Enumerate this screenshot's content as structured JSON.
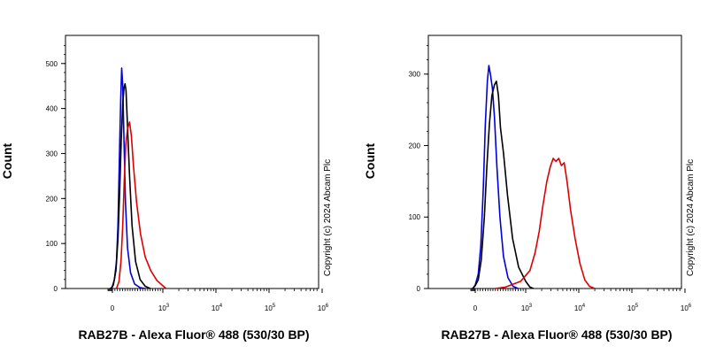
{
  "chart_data": [
    {
      "type": "line",
      "title": "",
      "xlabel": "RAB27B - Alexa Fluor® 488 (530/30 BP)",
      "ylabel": "Count",
      "copyright": "Copyright (c) 2024 Abcam Plc",
      "x_scale": "biexponential",
      "xlim": [
        -300,
        1000000
      ],
      "ylim": [
        0,
        540
      ],
      "x_ticks": [
        {
          "value": 0,
          "base": "0",
          "exp": ""
        },
        {
          "value": 1000,
          "base": "10",
          "exp": "3"
        },
        {
          "value": 10000,
          "base": "10",
          "exp": "4"
        },
        {
          "value": 100000,
          "base": "10",
          "exp": "5"
        },
        {
          "value": 1000000,
          "base": "10",
          "exp": "6"
        }
      ],
      "y_ticks": [
        0,
        100,
        200,
        300,
        400,
        500
      ],
      "series": [
        {
          "color": "#0000dd",
          "points": [
            [
              -120,
              0
            ],
            [
              -50,
              2
            ],
            [
              0,
              5
            ],
            [
              40,
              20
            ],
            [
              80,
              60
            ],
            [
              110,
              140
            ],
            [
              140,
              300
            ],
            [
              165,
              420
            ],
            [
              185,
              490
            ],
            [
              205,
              450
            ],
            [
              230,
              330
            ],
            [
              260,
              190
            ],
            [
              300,
              90
            ],
            [
              360,
              35
            ],
            [
              440,
              10
            ],
            [
              550,
              2
            ],
            [
              650,
              0
            ]
          ]
        },
        {
          "color": "#000000",
          "points": [
            [
              -100,
              0
            ],
            [
              -30,
              2
            ],
            [
              20,
              8
            ],
            [
              70,
              40
            ],
            [
              110,
              110
            ],
            [
              145,
              220
            ],
            [
              175,
              330
            ],
            [
              205,
              410
            ],
            [
              230,
              445
            ],
            [
              250,
              455
            ],
            [
              270,
              440
            ],
            [
              300,
              360
            ],
            [
              340,
              250
            ],
            [
              390,
              140
            ],
            [
              460,
              60
            ],
            [
              550,
              20
            ],
            [
              650,
              5
            ],
            [
              750,
              0
            ]
          ]
        },
        {
          "color": "#dd0000",
          "points": [
            [
              80,
              0
            ],
            [
              130,
              15
            ],
            [
              170,
              60
            ],
            [
              205,
              140
            ],
            [
              235,
              240
            ],
            [
              265,
              320
            ],
            [
              300,
              355
            ],
            [
              340,
              370
            ],
            [
              375,
              340
            ],
            [
              420,
              270
            ],
            [
              480,
              190
            ],
            [
              560,
              120
            ],
            [
              650,
              70
            ],
            [
              760,
              40
            ],
            [
              880,
              18
            ],
            [
              1000,
              6
            ],
            [
              1150,
              0
            ]
          ]
        }
      ]
    },
    {
      "type": "line",
      "title": "",
      "xlabel": "RAB27B - Alexa Fluor® 488 (530/30 BP)",
      "ylabel": "Count",
      "copyright": "Copyright (c) 2024 Abcam Plc",
      "x_scale": "biexponential",
      "xlim": [
        -300,
        1000000
      ],
      "ylim": [
        0,
        340
      ],
      "x_ticks": [
        {
          "value": 0,
          "base": "0",
          "exp": ""
        },
        {
          "value": 1000,
          "base": "10",
          "exp": "3"
        },
        {
          "value": 10000,
          "base": "10",
          "exp": "4"
        },
        {
          "value": 100000,
          "base": "10",
          "exp": "5"
        },
        {
          "value": 1000000,
          "base": "10",
          "exp": "6"
        }
      ],
      "y_ticks": [
        0,
        100,
        200,
        300
      ],
      "series": [
        {
          "color": "#0000dd",
          "points": [
            [
              -150,
              0
            ],
            [
              -80,
              2
            ],
            [
              0,
              5
            ],
            [
              60,
              20
            ],
            [
              110,
              60
            ],
            [
              160,
              140
            ],
            [
              200,
              230
            ],
            [
              240,
              290
            ],
            [
              270,
              312
            ],
            [
              300,
              300
            ],
            [
              340,
              280
            ],
            [
              380,
              240
            ],
            [
              430,
              170
            ],
            [
              490,
              100
            ],
            [
              560,
              45
            ],
            [
              650,
              15
            ],
            [
              750,
              3
            ],
            [
              850,
              0
            ]
          ]
        },
        {
          "color": "#000000",
          "points": [
            [
              -150,
              0
            ],
            [
              -80,
              2
            ],
            [
              0,
              4
            ],
            [
              60,
              12
            ],
            [
              120,
              40
            ],
            [
              180,
              100
            ],
            [
              230,
              170
            ],
            [
              280,
              230
            ],
            [
              330,
              270
            ],
            [
              380,
              285
            ],
            [
              420,
              290
            ],
            [
              460,
              270
            ],
            [
              500,
              225
            ],
            [
              560,
              190
            ],
            [
              640,
              130
            ],
            [
              740,
              70
            ],
            [
              860,
              30
            ],
            [
              1000,
              10
            ],
            [
              1200,
              2
            ],
            [
              1400,
              0
            ]
          ]
        },
        {
          "color": "#dd0000",
          "points": [
            [
              400,
              0
            ],
            [
              600,
              2
            ],
            [
              900,
              10
            ],
            [
              1200,
              25
            ],
            [
              1500,
              50
            ],
            [
              1800,
              80
            ],
            [
              2100,
              115
            ],
            [
              2500,
              150
            ],
            [
              2900,
              170
            ],
            [
              3300,
              182
            ],
            [
              3700,
              178
            ],
            [
              4200,
              182
            ],
            [
              4700,
              172
            ],
            [
              5300,
              176
            ],
            [
              6000,
              150
            ],
            [
              7000,
              110
            ],
            [
              8500,
              70
            ],
            [
              10500,
              35
            ],
            [
              13000,
              12
            ],
            [
              16000,
              3
            ],
            [
              20000,
              0
            ]
          ]
        }
      ]
    }
  ]
}
